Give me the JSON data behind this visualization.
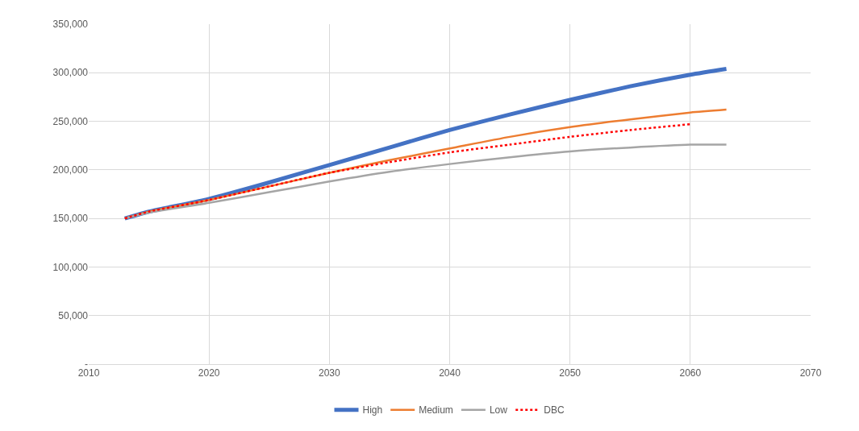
{
  "chart_data": {
    "type": "line",
    "xlim": [
      2010,
      2070
    ],
    "xticks": [
      2010,
      2020,
      2030,
      2040,
      2050,
      2060,
      2070
    ],
    "ylim": [
      0,
      350000
    ],
    "yticks": [
      {
        "value": 0,
        "label": "-"
      },
      {
        "value": 50000,
        "label": "50,000"
      },
      {
        "value": 100000,
        "label": "100,000"
      },
      {
        "value": 150000,
        "label": "150,000"
      },
      {
        "value": 200000,
        "label": "200,000"
      },
      {
        "value": 250000,
        "label": "250,000"
      },
      {
        "value": 300000,
        "label": "300,000"
      },
      {
        "value": 350000,
        "label": "350,000"
      }
    ],
    "grid": true,
    "legend": "bottom",
    "marker": "none",
    "x": [
      2013,
      2015,
      2020,
      2025,
      2030,
      2035,
      2040,
      2045,
      2050,
      2055,
      2060,
      2063
    ],
    "series": [
      {
        "name": "High",
        "color": "#4472c4",
        "values": [
          150000,
          157000,
          170000,
          187000,
          205000,
          223000,
          241000,
          257000,
          272000,
          286000,
          298000,
          304000
        ]
      },
      {
        "name": "Medium",
        "color": "#ed7d31",
        "values": [
          150000,
          157000,
          169000,
          183000,
          197000,
          210000,
          222000,
          234000,
          244000,
          252000,
          259000,
          262000
        ]
      },
      {
        "name": "Low",
        "color": "#a5a5a5",
        "values": [
          150000,
          156000,
          166000,
          177000,
          188000,
          198000,
          206000,
          213000,
          219000,
          223000,
          226000,
          226000
        ]
      },
      {
        "name": "DBC",
        "color": "#ff0000",
        "line_style": "dotted",
        "x": [
          2013,
          2015,
          2020,
          2025,
          2030,
          2035,
          2040,
          2045,
          2050,
          2055,
          2060
        ],
        "values": [
          150000,
          157000,
          169000,
          183000,
          197000,
          208000,
          218000,
          226000,
          234000,
          241000,
          247000
        ]
      }
    ]
  }
}
